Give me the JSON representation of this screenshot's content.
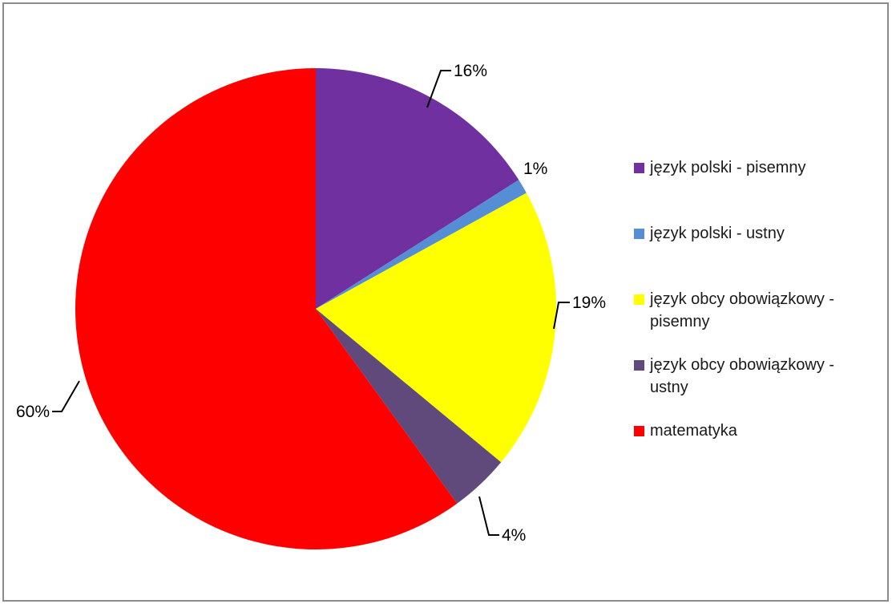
{
  "chart_data": {
    "type": "pie",
    "title": "",
    "start_angle_deg": 0,
    "direction": "clockwise",
    "legend_position": "right",
    "slices": [
      {
        "label": "język polski - pisemny",
        "value": 16,
        "value_label": "16%",
        "color": "#7030a0"
      },
      {
        "label": "język polski - ustny",
        "value": 1,
        "value_label": "1%",
        "color": "#558ed5"
      },
      {
        "label": "język obcy obowiązkowy - pisemny",
        "value": 19,
        "value_label": "19%",
        "color": "#ffff00"
      },
      {
        "label": "język obcy obowiązkowy - ustny",
        "value": 4,
        "value_label": "4%",
        "color": "#604a7b"
      },
      {
        "label": "matematyka",
        "value": 60,
        "value_label": "60%",
        "color": "#ff0000"
      }
    ]
  }
}
